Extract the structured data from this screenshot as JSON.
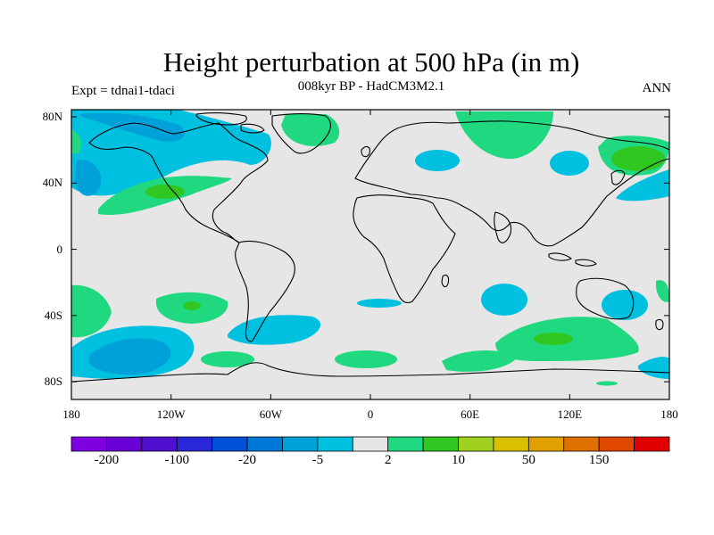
{
  "title": "Height perturbation at 500 hPa (in m)",
  "subtitle": "008kyr BP - HadCM3M2.1",
  "left_label": "Expt = tdnai1-tdaci",
  "right_label": "ANN",
  "lat_labels": [
    "80N",
    "40N",
    "0",
    "40S",
    "80S"
  ],
  "lat_values": [
    80,
    40,
    0,
    -40,
    -80
  ],
  "lon_labels": [
    "180",
    "120W",
    "60W",
    "0",
    "60E",
    "120E",
    "180"
  ],
  "lon_values": [
    -180,
    -120,
    -60,
    0,
    60,
    120,
    180
  ],
  "colorbar": {
    "colors": [
      "#7f00e0",
      "#6a00d8",
      "#5010d0",
      "#2828d8",
      "#0050d8",
      "#0078d8",
      "#00a0d8",
      "#00c0e0",
      "#e6e6e6",
      "#20d880",
      "#30c820",
      "#a0d020",
      "#d8c000",
      "#e0a000",
      "#e07000",
      "#e04800",
      "#e00000"
    ],
    "labels": [
      "-200",
      "-100",
      "-20",
      "-5",
      "2",
      "10",
      "50",
      "150"
    ]
  },
  "colors": {
    "background": "#e6e6e6",
    "neg_weak": "#00c0e0",
    "neg_mid": "#00a0d8",
    "pos_weak": "#20d880",
    "pos_mid": "#30c820",
    "coast": "#000000"
  }
}
